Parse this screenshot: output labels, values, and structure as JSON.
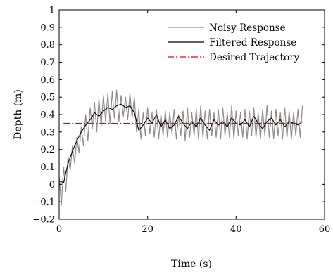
{
  "chart_data": {
    "type": "line",
    "xlabel": "Time (s)",
    "ylabel": "Depth (m)",
    "xlim": [
      0,
      60
    ],
    "ylim": [
      -0.2,
      1
    ],
    "xticks": [
      0,
      20,
      40,
      60
    ],
    "xtick_labels": [
      "0",
      "20",
      "40",
      "60"
    ],
    "yticks": [
      -0.2,
      -0.1,
      0,
      0.1,
      0.2,
      0.3,
      0.4,
      0.5,
      0.6,
      0.7,
      0.8,
      0.9,
      1
    ],
    "ytick_labels": [
      "−0.2",
      "−0.1",
      "0",
      "0.1",
      "0.2",
      "0.3",
      "0.4",
      "0.5",
      "0.6",
      "0.7",
      "0.8",
      "0.9",
      "1"
    ],
    "grid": false,
    "legend_position": "top-right",
    "series": [
      {
        "name": "Noisy Response",
        "color": "#8c8c8c",
        "style": "solid",
        "x": [
          0,
          0.5,
          1,
          1.5,
          2,
          2.5,
          3,
          3.5,
          4,
          4.5,
          5,
          5.5,
          6,
          6.5,
          7,
          7.5,
          8,
          8.5,
          9,
          9.5,
          10,
          10.5,
          11,
          11.5,
          12,
          12.5,
          13,
          13.5,
          14,
          14.5,
          15,
          15.5,
          16,
          16.5,
          17,
          17.5,
          18,
          18.5,
          19,
          19.5,
          20,
          20.5,
          21,
          21.5,
          22,
          22.5,
          23,
          23.5,
          24,
          24.5,
          25,
          25.5,
          26,
          26.5,
          27,
          27.5,
          28,
          28.5,
          29,
          29.5,
          30,
          30.5,
          31,
          31.5,
          32,
          32.5,
          33,
          33.5,
          34,
          34.5,
          35,
          35.5,
          36,
          36.5,
          37,
          37.5,
          38,
          38.5,
          39,
          39.5,
          40,
          40.5,
          41,
          41.5,
          42,
          42.5,
          43,
          43.5,
          44,
          44.5,
          45,
          45.5,
          46,
          46.5,
          47,
          47.5,
          48,
          48.5,
          49,
          49.5,
          50,
          50.5,
          51,
          51.5,
          52,
          52.5,
          53,
          53.5,
          54,
          54.5,
          55
        ],
        "y": [
          0.05,
          -0.12,
          0.1,
          -0.04,
          0.16,
          0.08,
          0.22,
          0.12,
          0.27,
          0.18,
          0.33,
          0.22,
          0.4,
          0.25,
          0.44,
          0.32,
          0.47,
          0.3,
          0.49,
          0.33,
          0.51,
          0.36,
          0.52,
          0.35,
          0.53,
          0.38,
          0.54,
          0.36,
          0.51,
          0.39,
          0.5,
          0.37,
          0.52,
          0.38,
          0.5,
          0.3,
          0.43,
          0.26,
          0.41,
          0.28,
          0.44,
          0.29,
          0.41,
          0.27,
          0.43,
          0.26,
          0.4,
          0.28,
          0.42,
          0.27,
          0.41,
          0.29,
          0.43,
          0.26,
          0.4,
          0.28,
          0.42,
          0.25,
          0.44,
          0.27,
          0.41,
          0.28,
          0.43,
          0.26,
          0.45,
          0.27,
          0.42,
          0.26,
          0.43,
          0.28,
          0.41,
          0.27,
          0.43,
          0.26,
          0.44,
          0.28,
          0.41,
          0.27,
          0.45,
          0.26,
          0.42,
          0.28,
          0.41,
          0.27,
          0.43,
          0.26,
          0.42,
          0.28,
          0.44,
          0.27,
          0.41,
          0.26,
          0.43,
          0.28,
          0.45,
          0.27,
          0.42,
          0.26,
          0.43,
          0.28,
          0.41,
          0.26,
          0.44,
          0.27,
          0.42,
          0.26,
          0.41,
          0.28,
          0.43,
          0.27,
          0.45
        ]
      },
      {
        "name": "Filtered Response",
        "color": "#000000",
        "style": "solid",
        "x": [
          0,
          1,
          2,
          3,
          4,
          5,
          6,
          7,
          8,
          9,
          10,
          11,
          12,
          13,
          14,
          15,
          16,
          17,
          18,
          19,
          20,
          21,
          22,
          23,
          24,
          25,
          26,
          27,
          28,
          29,
          30,
          31,
          32,
          33,
          34,
          35,
          36,
          37,
          38,
          39,
          40,
          41,
          42,
          43,
          44,
          45,
          46,
          47,
          48,
          49,
          50,
          51,
          52,
          53,
          54,
          55
        ],
        "y": [
          0.02,
          0.01,
          0.12,
          0.19,
          0.25,
          0.3,
          0.34,
          0.37,
          0.41,
          0.39,
          0.42,
          0.44,
          0.43,
          0.45,
          0.46,
          0.44,
          0.45,
          0.41,
          0.31,
          0.34,
          0.38,
          0.35,
          0.4,
          0.33,
          0.37,
          0.32,
          0.34,
          0.39,
          0.35,
          0.32,
          0.36,
          0.33,
          0.38,
          0.34,
          0.31,
          0.37,
          0.34,
          0.36,
          0.33,
          0.38,
          0.35,
          0.34,
          0.37,
          0.33,
          0.39,
          0.35,
          0.32,
          0.36,
          0.38,
          0.34,
          0.37,
          0.33,
          0.36,
          0.35,
          0.34,
          0.36
        ]
      },
      {
        "name": "Desired Trajectory",
        "color": "#e8000b",
        "style": "dashdot",
        "x": [
          1,
          55
        ],
        "y": [
          0.35,
          0.35
        ]
      }
    ]
  }
}
